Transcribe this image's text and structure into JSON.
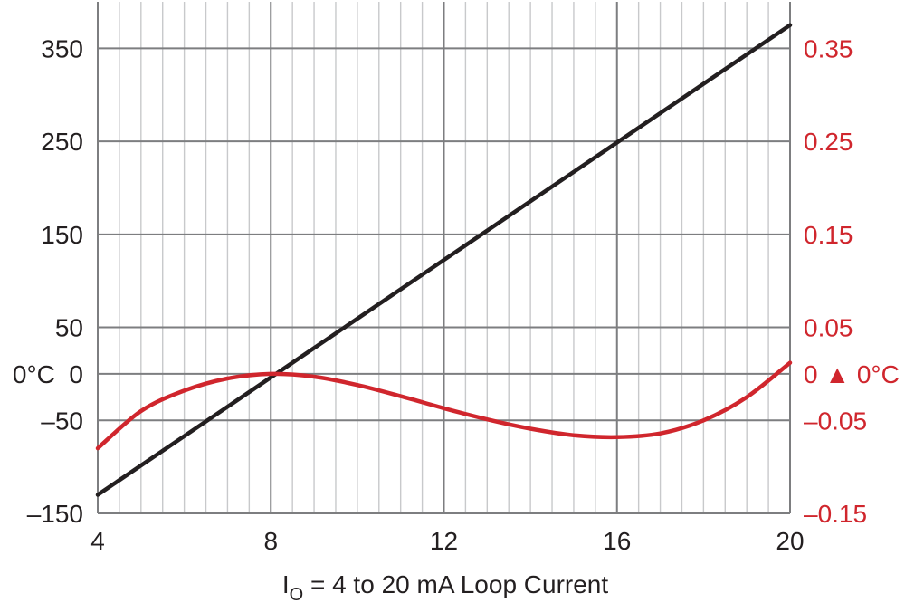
{
  "chart_data": {
    "type": "line",
    "title": "",
    "xlabel": {
      "prefix": "I",
      "subscript": "O",
      "suffix": " = 4 to 20 mA Loop Current"
    },
    "x_ticks": [
      "4",
      "8",
      "12",
      "16",
      "20"
    ],
    "xlim": [
      4,
      20
    ],
    "ylim_left": [
      -150,
      400
    ],
    "ylim_right": [
      -0.15,
      0.4
    ],
    "y_ticks_left": [
      {
        "value": 350,
        "label": "350"
      },
      {
        "value": 250,
        "label": "250"
      },
      {
        "value": 150,
        "label": "150"
      },
      {
        "value": 50,
        "label": "50"
      },
      {
        "value": 0,
        "label": "0°C  0"
      },
      {
        "value": -50,
        "label": "–50"
      },
      {
        "value": -150,
        "label": "–150"
      }
    ],
    "y_ticks_right": [
      {
        "value": 0.35,
        "label": "0.35"
      },
      {
        "value": 0.25,
        "label": "0.25"
      },
      {
        "value": 0.15,
        "label": "0.15"
      },
      {
        "value": 0.05,
        "label": "0.05"
      },
      {
        "value": 0,
        "label": "0 ▲ 0°C"
      },
      {
        "value": -0.05,
        "label": "–0.05"
      },
      {
        "value": -0.15,
        "label": "–0.15"
      }
    ],
    "grid": true,
    "series": [
      {
        "axis": "left",
        "color": "#231f20",
        "x": [
          4,
          20
        ],
        "y": [
          -130,
          375
        ]
      },
      {
        "axis": "right",
        "color": "#d0262d",
        "x": [
          4,
          5,
          6,
          7,
          8,
          9,
          10,
          11,
          12,
          13,
          14,
          15,
          16,
          17,
          18,
          19,
          20
        ],
        "y": [
          -0.08,
          -0.04,
          -0.018,
          -0.005,
          0.0,
          -0.003,
          -0.012,
          -0.024,
          -0.037,
          -0.049,
          -0.059,
          -0.066,
          -0.068,
          -0.064,
          -0.05,
          -0.025,
          0.012
        ]
      }
    ]
  }
}
